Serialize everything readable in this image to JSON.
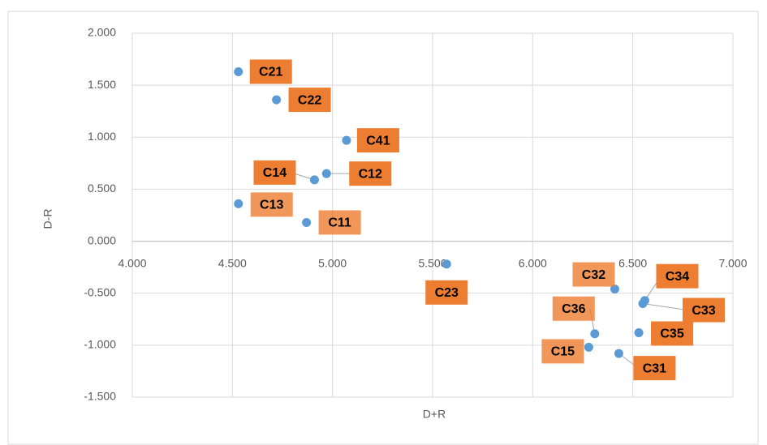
{
  "chart_data": {
    "type": "scatter",
    "x_label": "D+R",
    "y_label": "D-R",
    "labels": [
      "C21",
      "C22",
      "C41",
      "C12",
      "C14",
      "C13",
      "C11",
      "C23",
      "C32",
      "C34",
      "C33",
      "C36",
      "C35",
      "C15",
      "C31"
    ],
    "x": [
      4.53,
      4.72,
      5.07,
      4.97,
      4.91,
      4.53,
      4.87,
      5.57,
      6.41,
      6.56,
      6.55,
      6.31,
      6.53,
      6.28,
      6.43
    ],
    "values": [
      1.63,
      1.36,
      0.97,
      0.65,
      0.59,
      0.36,
      0.18,
      -0.22,
      -0.46,
      -0.57,
      -0.6,
      -0.89,
      -0.88,
      -1.02,
      -1.08
    ],
    "color": "#5b9bd5",
    "label_color": "#ed7d31",
    "xlim": [
      4,
      7
    ],
    "ylim": [
      -1.5,
      2
    ],
    "xticks": [
      {
        "value": 4,
        "label": "4.000"
      },
      {
        "value": 4.5,
        "label": "4.500"
      },
      {
        "value": 5,
        "label": "5.000"
      },
      {
        "value": 5.5,
        "label": "5.500"
      },
      {
        "value": 6,
        "label": "6.000"
      },
      {
        "value": 6.5,
        "label": "6.500"
      },
      {
        "value": 7,
        "label": "7.000"
      }
    ],
    "yticks": [
      {
        "value": 2,
        "label": "2.000"
      },
      {
        "value": 1.5,
        "label": "1.500"
      },
      {
        "value": 1,
        "label": "1.000"
      },
      {
        "value": 0.5,
        "label": "0.500"
      },
      {
        "value": 0,
        "label": "0.000"
      },
      {
        "value": -0.5,
        "label": "-0.500"
      },
      {
        "value": -1,
        "label": "-1.000"
      },
      {
        "value": -1.5,
        "label": "-1.500"
      }
    ],
    "grid": true
  }
}
